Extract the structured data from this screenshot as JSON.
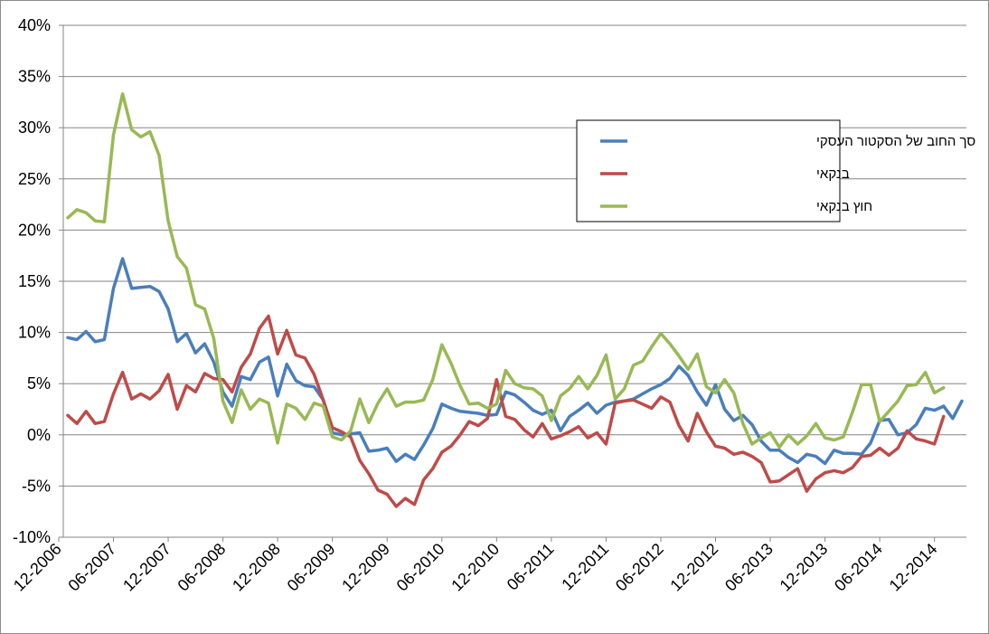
{
  "chart_data": {
    "type": "line",
    "ylim": [
      -10,
      40
    ],
    "y_ticks": [
      "-10%",
      "-5%",
      "0%",
      "5%",
      "10%",
      "15%",
      "20%",
      "25%",
      "30%",
      "35%",
      "40%"
    ],
    "x_tick_labels": [
      "12-2006",
      "06-2007",
      "12-2007",
      "06-2008",
      "12-2008",
      "06-2009",
      "12-2009",
      "06-2010",
      "12-2010",
      "06-2011",
      "12-2011",
      "06-2012",
      "12-2012",
      "06-2013",
      "12-2013",
      "06-2014",
      "12-2014"
    ],
    "x_start": "2007-01",
    "grid": "horizontal",
    "legend_position": "upper-right",
    "series": [
      {
        "name": "סך החוב של הסקטור העסקי",
        "color": "#4a7ebb",
        "values": [
          9.5,
          9.3,
          10.1,
          9.1,
          9.3,
          14.3,
          17.2,
          14.3,
          14.4,
          14.5,
          14.0,
          12.3,
          9.1,
          9.9,
          8.0,
          8.9,
          7.1,
          4.2,
          2.8,
          5.7,
          5.4,
          7.1,
          7.6,
          3.8,
          6.9,
          5.3,
          4.8,
          4.7,
          3.4,
          0.2,
          0.0,
          0.1,
          0.2,
          -1.6,
          -1.5,
          -1.3,
          -2.6,
          -1.9,
          -2.4,
          -1.0,
          0.6,
          3.0,
          2.6,
          2.3,
          2.2,
          2.1,
          1.9,
          2.0,
          4.2,
          3.9,
          3.2,
          2.4,
          2.0,
          2.4,
          0.4,
          1.8,
          2.4,
          3.1,
          2.1,
          2.9,
          3.2,
          3.3,
          3.5,
          4.0,
          4.5,
          4.9,
          5.5,
          6.7,
          5.8,
          4.2,
          2.9,
          4.9,
          2.5,
          1.4,
          1.9,
          1.0,
          -0.6,
          -1.5,
          -1.5,
          -2.2,
          -2.7,
          -1.9,
          -2.1,
          -2.8,
          -1.5,
          -1.8,
          -1.8,
          -1.9,
          -0.8,
          1.4,
          1.5,
          0.0,
          0.2,
          1.0,
          2.6,
          2.4,
          2.8,
          1.6,
          3.3
        ]
      },
      {
        "name": "בנקאי",
        "color": "#be4b48",
        "values": [
          1.9,
          1.1,
          2.3,
          1.1,
          1.3,
          4.0,
          6.1,
          3.5,
          4.0,
          3.5,
          4.3,
          5.9,
          2.5,
          4.8,
          4.2,
          6.0,
          5.5,
          5.4,
          4.2,
          6.6,
          7.9,
          10.4,
          11.6,
          7.9,
          10.2,
          7.8,
          7.5,
          5.9,
          3.4,
          0.7,
          0.3,
          -0.2,
          -2.5,
          -3.8,
          -5.4,
          -5.8,
          -7.0,
          -6.2,
          -6.8,
          -4.4,
          -3.3,
          -1.7,
          -1.1,
          0.0,
          1.3,
          0.9,
          1.6,
          5.4,
          1.8,
          1.5,
          0.5,
          -0.2,
          1.1,
          -0.4,
          -0.1,
          0.3,
          0.8,
          -0.3,
          0.2,
          -0.9,
          3.1,
          3.3,
          3.4,
          3.0,
          2.6,
          3.7,
          3.2,
          0.9,
          -0.6,
          2.1,
          0.3,
          -1.1,
          -1.3,
          -1.9,
          -1.7,
          -2.1,
          -2.7,
          -4.6,
          -4.5,
          -3.9,
          -3.3,
          -5.5,
          -4.3,
          -3.7,
          -3.5,
          -3.7,
          -3.2,
          -2.1,
          -2.0,
          -1.3,
          -2.0,
          -1.3,
          0.4,
          -0.4,
          -0.6,
          -0.9,
          1.8
        ]
      },
      {
        "name": "חוץ בנקאי",
        "color": "#98b954",
        "values": [
          21.2,
          22.0,
          21.7,
          20.9,
          20.8,
          29.3,
          33.3,
          29.8,
          29.1,
          29.6,
          27.3,
          20.9,
          17.4,
          16.3,
          12.7,
          12.3,
          9.4,
          3.3,
          1.2,
          4.4,
          2.5,
          3.5,
          3.1,
          -0.8,
          3.0,
          2.6,
          1.5,
          3.1,
          2.8,
          -0.2,
          -0.5,
          0.4,
          3.5,
          1.2,
          3.1,
          4.5,
          2.8,
          3.2,
          3.2,
          3.4,
          5.4,
          8.8,
          7.0,
          4.8,
          3.0,
          3.1,
          2.6,
          3.0,
          6.3,
          5.0,
          4.6,
          4.5,
          3.8,
          1.4,
          3.8,
          4.5,
          5.7,
          4.5,
          5.8,
          7.8,
          3.5,
          4.5,
          6.8,
          7.2,
          8.6,
          9.9,
          8.9,
          7.7,
          6.4,
          7.9,
          4.7,
          4.1,
          5.4,
          4.1,
          1.1,
          -0.9,
          -0.3,
          0.2,
          -1.2,
          0.0,
          -0.9,
          -0.1,
          1.1,
          -0.3,
          -0.5,
          -0.2,
          2.2,
          4.9,
          4.9,
          1.3,
          2.3,
          3.3,
          4.8,
          4.9,
          6.1,
          4.1,
          4.6
        ]
      }
    ]
  }
}
